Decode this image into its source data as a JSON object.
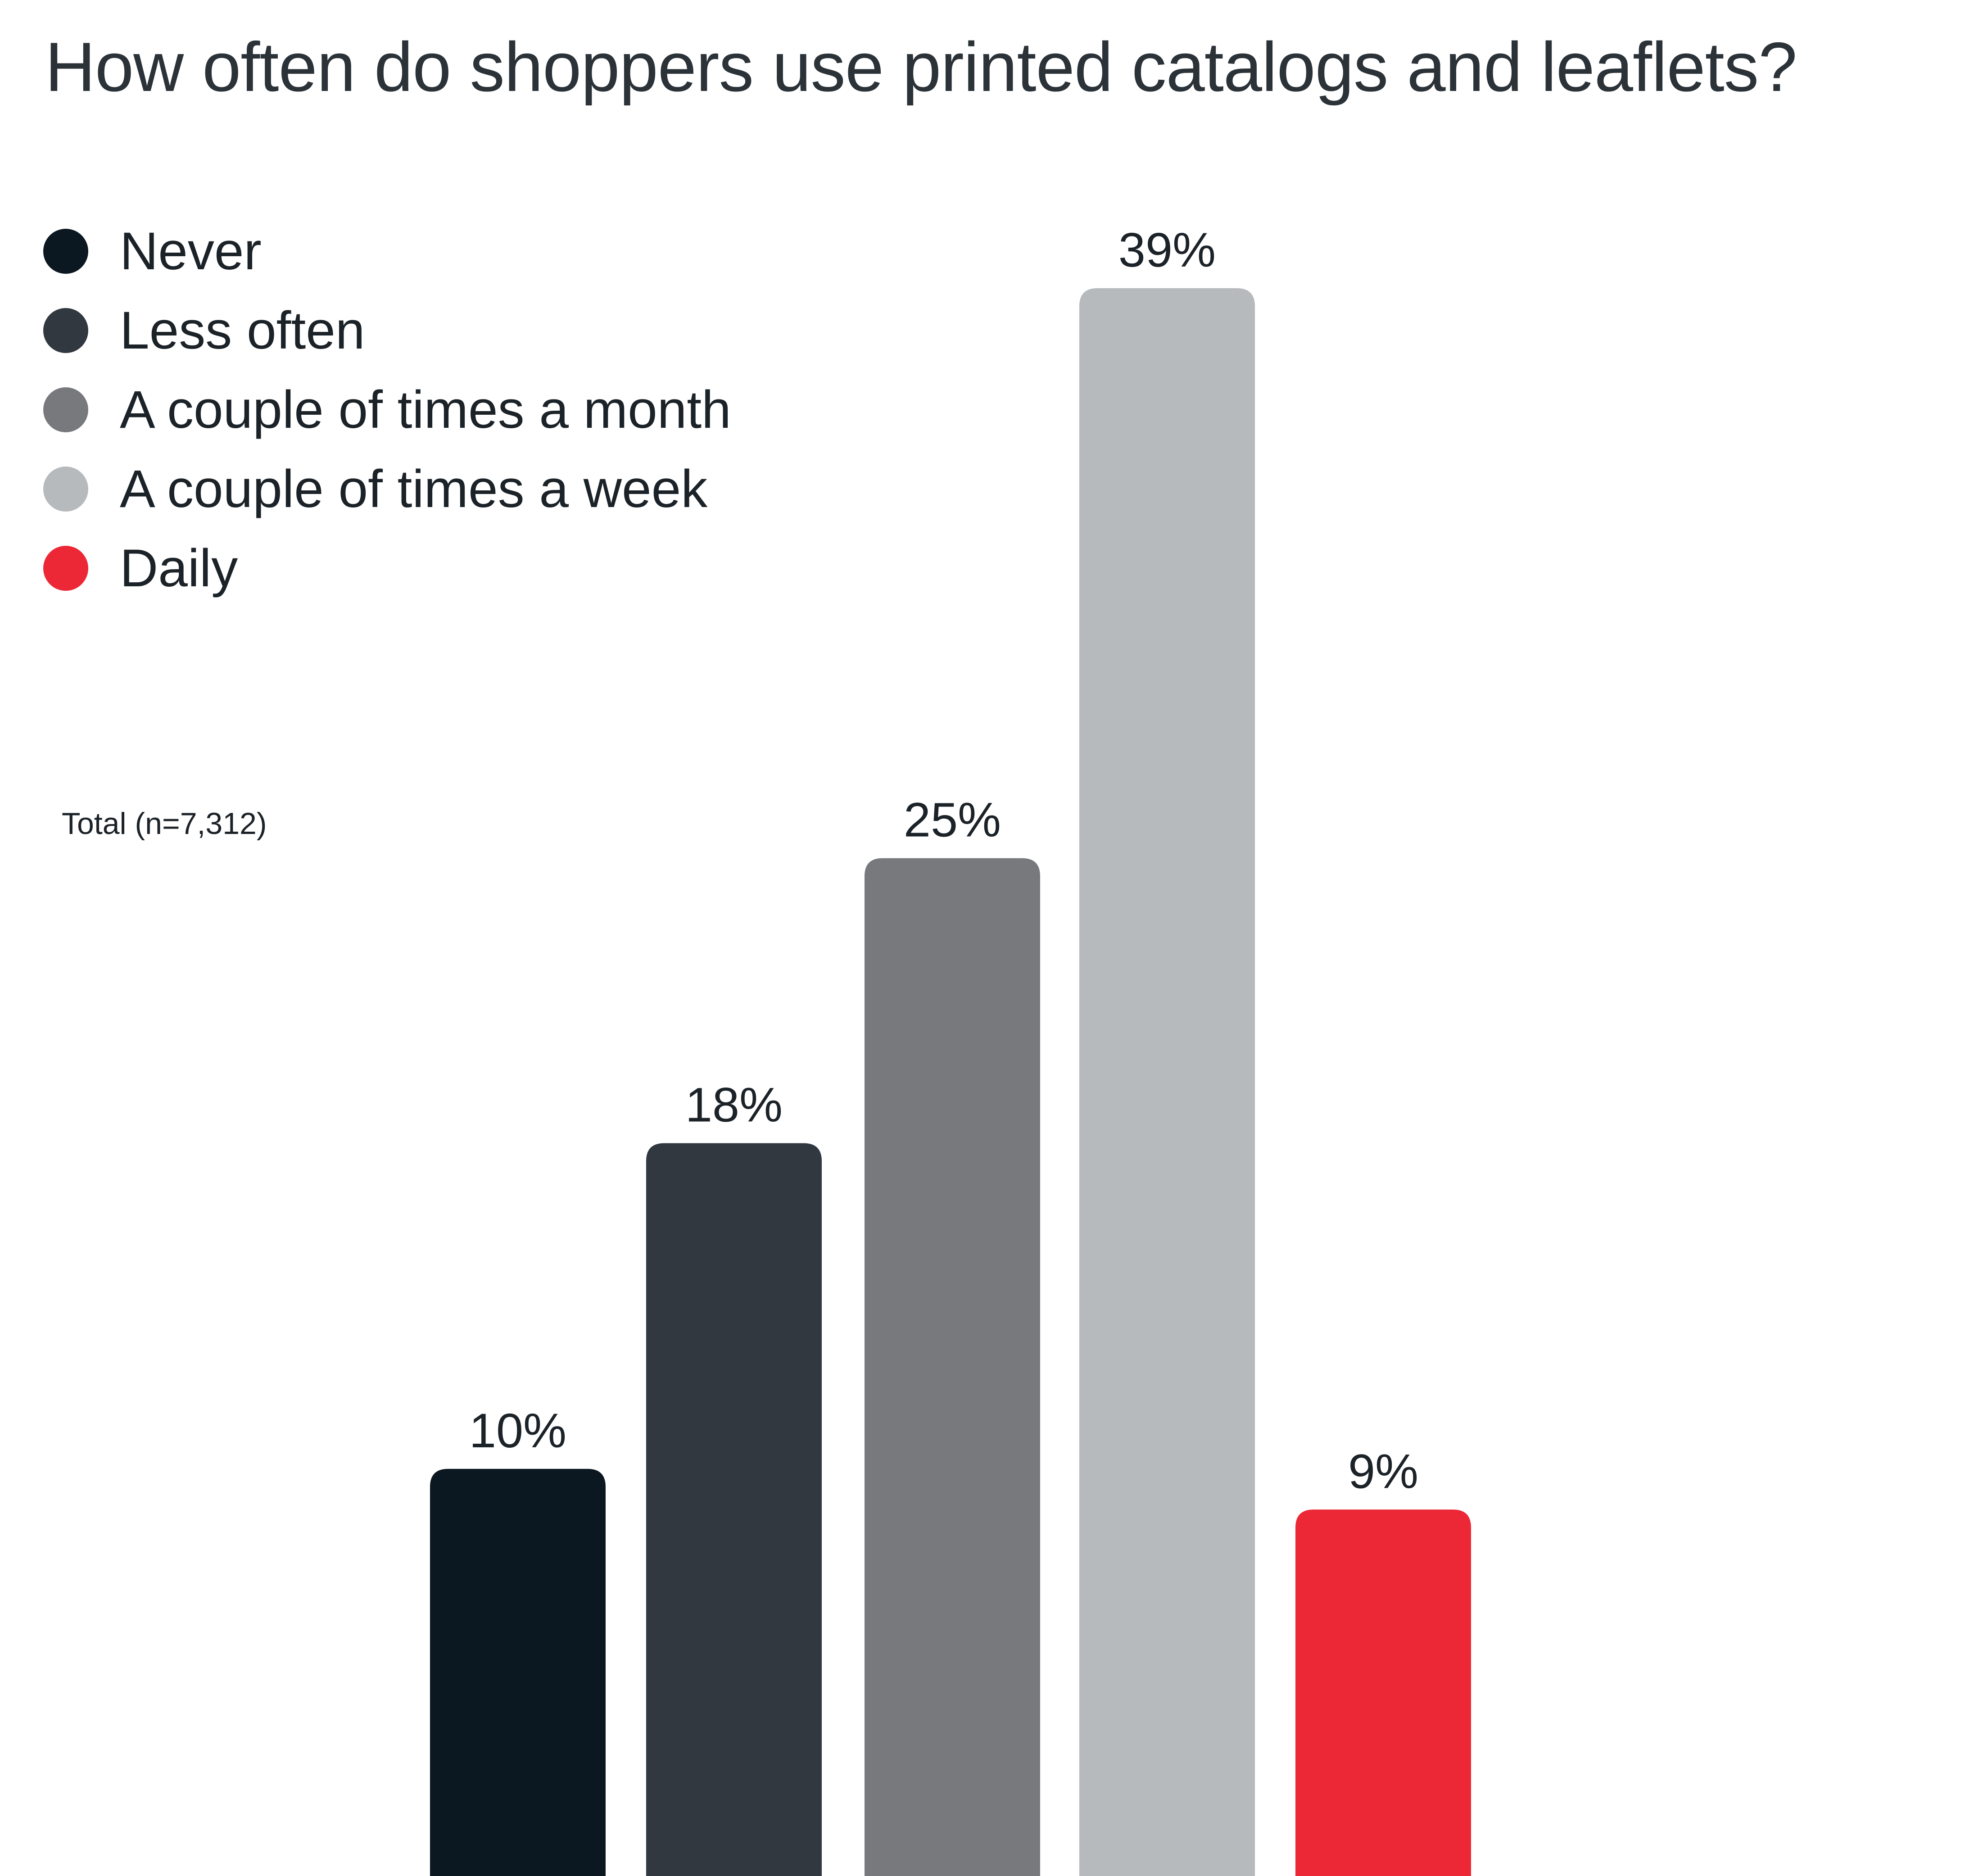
{
  "chart_data": {
    "type": "bar",
    "title": "How often do shoppers use printed catalogs and leaflets?",
    "note": "Total (n=7,312)",
    "categories": [
      "Never",
      "Less often",
      "A couple of times a month",
      "A couple of times a week",
      "Daily"
    ],
    "values": [
      10,
      18,
      25,
      39,
      9
    ],
    "value_labels": [
      "10%",
      "18%",
      "25%",
      "39%",
      "9%"
    ],
    "colors": [
      "#0b1721",
      "#313840",
      "#77797d",
      "#b6babd",
      "#ec2736"
    ],
    "ylim": [
      0,
      39
    ],
    "grid": false,
    "legend_position": "top-left",
    "xlabel": "",
    "ylabel": ""
  }
}
